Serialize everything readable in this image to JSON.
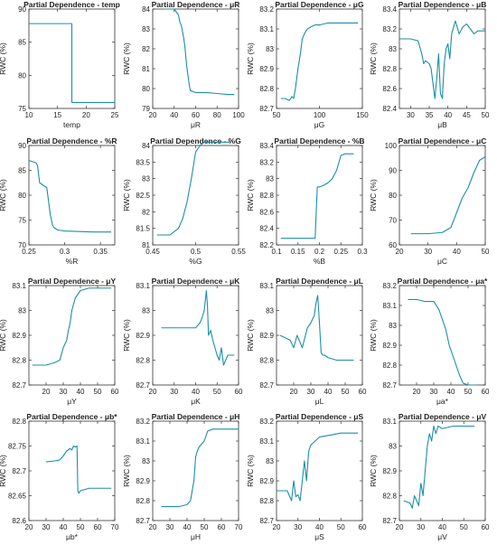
{
  "ylabel": "RWC (%)",
  "line_color": "#1b8fa6",
  "chart_data": [
    {
      "type": "line",
      "title": "Partial Dependence - temp",
      "xlabel": "temp",
      "xlim": [
        10,
        25
      ],
      "ylim": [
        75,
        90
      ],
      "xticks": [
        10,
        15,
        20,
        25
      ],
      "yticks": [
        75,
        80,
        85,
        90
      ],
      "ytick_labels": [
        "75",
        "80",
        "85",
        "90"
      ],
      "x": [
        10,
        17.5,
        17.5,
        25
      ],
      "y": [
        87.8,
        87.8,
        75.9,
        75.9
      ]
    },
    {
      "type": "line",
      "title": "Partial Dependence - μR",
      "xlabel": "μR",
      "xlim": [
        20,
        100
      ],
      "ylim": [
        79,
        84
      ],
      "xticks": [
        20,
        40,
        60,
        80,
        100
      ],
      "yticks": [
        79,
        80,
        81,
        82,
        83,
        84
      ],
      "ytick_labels": [
        "79",
        "80",
        "81",
        "82",
        "83",
        "84"
      ],
      "x": [
        30,
        40,
        44,
        45,
        47,
        48,
        49,
        50,
        51,
        52,
        53,
        54,
        55,
        60,
        70,
        80,
        90,
        96
      ],
      "y": [
        84.0,
        84.0,
        83.7,
        83.4,
        83.1,
        82.8,
        82.5,
        82.1,
        81.5,
        81.0,
        80.6,
        80.2,
        79.9,
        79.8,
        79.8,
        79.75,
        79.7,
        79.7
      ]
    },
    {
      "type": "line",
      "title": "Partial Dependence - μG",
      "xlabel": "μG",
      "xlim": [
        50,
        150
      ],
      "ylim": [
        82.7,
        83.2
      ],
      "xticks": [
        50,
        100,
        150
      ],
      "yticks": [
        82.7,
        82.8,
        82.9,
        83,
        83.1,
        83.2
      ],
      "ytick_labels": [
        "82.7",
        "82.8",
        "82.9",
        "83",
        "83.1",
        "83.2"
      ],
      "x": [
        55,
        60,
        65,
        68,
        70,
        72,
        75,
        78,
        80,
        83,
        86,
        90,
        95,
        100,
        110,
        120,
        130,
        140,
        145
      ],
      "y": [
        82.75,
        82.75,
        82.74,
        82.76,
        82.75,
        82.8,
        82.9,
        82.98,
        83.05,
        83.08,
        83.1,
        83.11,
        83.12,
        83.12,
        83.13,
        83.13,
        83.13,
        83.13,
        83.13
      ]
    },
    {
      "type": "line",
      "title": "Partial Dependence - μB",
      "xlabel": "μB",
      "xlim": [
        27,
        50
      ],
      "ylim": [
        82.4,
        83.4
      ],
      "xticks": [
        30,
        35,
        40,
        45,
        50
      ],
      "yticks": [
        82.4,
        82.6,
        82.8,
        83,
        83.2,
        83.4
      ],
      "ytick_labels": [
        "82.4",
        "82.6",
        "82.8",
        "83",
        "83.2",
        "83.4"
      ],
      "x": [
        27,
        30,
        32,
        33,
        33.5,
        34,
        35,
        35.5,
        36,
        36.5,
        37,
        37.5,
        38,
        38.5,
        39,
        39.5,
        40,
        40.5,
        41,
        42,
        43,
        44,
        45,
        46,
        47,
        48,
        50
      ],
      "y": [
        83.1,
        83.1,
        83.08,
        82.95,
        82.85,
        82.88,
        82.85,
        82.8,
        82.65,
        82.5,
        82.7,
        82.95,
        82.55,
        82.5,
        82.85,
        83.0,
        83.05,
        82.9,
        83.15,
        83.28,
        83.15,
        83.22,
        83.25,
        83.2,
        83.15,
        83.18,
        83.18
      ]
    },
    {
      "type": "line",
      "title": "Partial Dependence - %R",
      "xlabel": "%R",
      "xlim": [
        0.25,
        0.37
      ],
      "ylim": [
        70,
        90
      ],
      "xticks": [
        0.25,
        0.3,
        0.35
      ],
      "yticks": [
        70,
        75,
        80,
        85,
        90
      ],
      "ytick_labels": [
        "70",
        "75",
        "80",
        "85",
        "90"
      ],
      "x": [
        0.25,
        0.26,
        0.262,
        0.265,
        0.27,
        0.275,
        0.28,
        0.283,
        0.285,
        0.29,
        0.3,
        0.32,
        0.34,
        0.36,
        0.365
      ],
      "y": [
        87,
        86.5,
        86,
        82.5,
        82,
        81.5,
        76,
        74,
        73.5,
        73,
        72.8,
        72.7,
        72.6,
        72.6,
        72.6
      ]
    },
    {
      "type": "line",
      "title": "Partial Dependence - %G",
      "xlabel": "%G",
      "xlim": [
        0.45,
        0.55
      ],
      "ylim": [
        81,
        84
      ],
      "xticks": [
        0.45,
        0.5,
        0.55
      ],
      "yticks": [
        81,
        81.5,
        82,
        82.5,
        83,
        83.5,
        84
      ],
      "ytick_labels": [
        "81",
        "81.5",
        "82",
        "82.5",
        "83",
        "83.5",
        "84"
      ],
      "x": [
        0.455,
        0.47,
        0.475,
        0.48,
        0.485,
        0.49,
        0.495,
        0.5,
        0.505,
        0.51,
        0.52,
        0.54
      ],
      "y": [
        81.3,
        81.3,
        81.4,
        81.5,
        81.8,
        82.3,
        83.0,
        83.8,
        84.0,
        84.1,
        84.1,
        84.1
      ]
    },
    {
      "type": "line",
      "title": "Partial Dependence - %B",
      "xlabel": "%B",
      "xlim": [
        0.1,
        0.3
      ],
      "ylim": [
        82.2,
        83.4
      ],
      "xticks": [
        0.1,
        0.15,
        0.2,
        0.25,
        0.3
      ],
      "yticks": [
        82.2,
        82.4,
        82.6,
        82.8,
        83,
        83.2,
        83.4
      ],
      "ytick_labels": [
        "82.2",
        "82.4",
        "82.6",
        "82.8",
        "83",
        "83.2",
        "83.4"
      ],
      "x": [
        0.11,
        0.15,
        0.19,
        0.195,
        0.2,
        0.21,
        0.22,
        0.23,
        0.24,
        0.25,
        0.26,
        0.28
      ],
      "y": [
        82.28,
        82.28,
        82.28,
        82.9,
        82.9,
        82.92,
        82.95,
        83.0,
        83.1,
        83.28,
        83.3,
        83.3
      ]
    },
    {
      "type": "line",
      "title": "Partial Dependence - μC",
      "xlabel": "μC",
      "xlim": [
        20,
        50
      ],
      "ylim": [
        60,
        100
      ],
      "xticks": [
        20,
        30,
        40,
        50
      ],
      "yticks": [
        60,
        70,
        80,
        90,
        100
      ],
      "ytick_labels": [
        "60",
        "70",
        "80",
        "90",
        "100"
      ],
      "x": [
        24,
        30,
        35,
        38,
        40,
        42,
        44,
        46,
        48,
        50
      ],
      "y": [
        64.5,
        64.5,
        65,
        67,
        73,
        79,
        83,
        89,
        94,
        95.5
      ]
    },
    {
      "type": "line",
      "title": "Partial Dependence - μY",
      "xlabel": "μY",
      "xlim": [
        10,
        60
      ],
      "ylim": [
        82.7,
        83.1
      ],
      "xticks": [
        20,
        30,
        40,
        50,
        60
      ],
      "yticks": [
        82.7,
        82.8,
        82.9,
        83,
        83.1
      ],
      "ytick_labels": [
        "82.7",
        "82.8",
        "82.9",
        "83",
        "83.1"
      ],
      "x": [
        12,
        20,
        25,
        28,
        30,
        32,
        33,
        34,
        35,
        37,
        40,
        45,
        50,
        58
      ],
      "y": [
        82.78,
        82.78,
        82.79,
        82.8,
        82.85,
        82.88,
        82.92,
        82.95,
        83.0,
        83.05,
        83.08,
        83.09,
        83.09,
        83.09
      ]
    },
    {
      "type": "line",
      "title": "Partial Dependence - μK",
      "xlabel": "μK",
      "xlim": [
        20,
        60
      ],
      "ylim": [
        82.7,
        83.1
      ],
      "xticks": [
        20,
        30,
        40,
        50,
        60
      ],
      "yticks": [
        82.7,
        82.8,
        82.9,
        83,
        83.1
      ],
      "ytick_labels": [
        "82.7",
        "82.8",
        "82.9",
        "83",
        "83.1"
      ],
      "x": [
        24,
        35,
        40,
        42,
        43,
        44,
        45,
        45.5,
        46,
        47,
        48,
        49,
        50,
        51,
        52,
        53,
        55,
        58
      ],
      "y": [
        82.93,
        82.93,
        82.93,
        82.95,
        82.97,
        83.0,
        83.08,
        83.02,
        82.9,
        82.92,
        82.88,
        82.85,
        82.82,
        82.8,
        82.85,
        82.78,
        82.82,
        82.82
      ]
    },
    {
      "type": "line",
      "title": "Partial Dependence - μL",
      "xlabel": "μL",
      "xlim": [
        10,
        60
      ],
      "ylim": [
        82.7,
        83.1
      ],
      "xticks": [
        20,
        30,
        40,
        50,
        60
      ],
      "yticks": [
        82.7,
        82.8,
        82.9,
        83,
        83.1
      ],
      "ytick_labels": [
        "82.7",
        "82.8",
        "82.9",
        "83",
        "83.1"
      ],
      "x": [
        12,
        18,
        20,
        22,
        25,
        28,
        30,
        32,
        33,
        34,
        35,
        36,
        37,
        38,
        40,
        45,
        50,
        55
      ],
      "y": [
        82.9,
        82.88,
        82.85,
        82.9,
        82.85,
        82.93,
        82.95,
        82.98,
        83.03,
        83.06,
        82.95,
        82.83,
        82.82,
        82.82,
        82.81,
        82.8,
        82.8,
        82.8
      ]
    },
    {
      "type": "line",
      "title": "Partial Dependence - μa*",
      "xlabel": "μa*",
      "xlim": [
        10,
        60
      ],
      "ylim": [
        82.7,
        83.2
      ],
      "xticks": [
        20,
        30,
        40,
        50,
        60
      ],
      "yticks": [
        82.7,
        82.8,
        82.9,
        83,
        83.1,
        83.2
      ],
      "ytick_labels": [
        "82.7",
        "82.8",
        "82.9",
        "83",
        "83.1",
        "83.2"
      ],
      "x": [
        15,
        20,
        25,
        30,
        33,
        35,
        37,
        39,
        41,
        43,
        45,
        47,
        50,
        55
      ],
      "y": [
        83.13,
        83.13,
        83.12,
        83.12,
        83.08,
        83.03,
        82.98,
        82.9,
        82.85,
        82.8,
        82.75,
        82.71,
        82.7,
        82.7
      ]
    },
    {
      "type": "line",
      "title": "Partial Dependence - μb*",
      "xlabel": "μb*",
      "xlim": [
        20,
        70
      ],
      "ylim": [
        82.6,
        82.8
      ],
      "xticks": [
        20,
        30,
        40,
        50,
        60,
        70
      ],
      "yticks": [
        82.6,
        82.65,
        82.7,
        82.75,
        82.8
      ],
      "ytick_labels": [
        "82.6",
        "82.65",
        "82.7",
        "82.75",
        "82.8"
      ],
      "x": [
        30,
        35,
        38,
        40,
        42,
        44,
        45,
        46,
        47,
        48,
        48.5,
        49,
        50,
        55,
        60,
        68
      ],
      "y": [
        82.718,
        82.72,
        82.722,
        82.73,
        82.74,
        82.745,
        82.742,
        82.75,
        82.748,
        82.75,
        82.66,
        82.655,
        82.66,
        82.665,
        82.665,
        82.665
      ]
    },
    {
      "type": "line",
      "title": "Partial Dependence - μH",
      "xlabel": "μH",
      "xlim": [
        20,
        70
      ],
      "ylim": [
        82.7,
        83.2
      ],
      "xticks": [
        20,
        30,
        40,
        50,
        60,
        70
      ],
      "yticks": [
        82.7,
        82.8,
        82.9,
        83,
        83.1,
        83.2
      ],
      "ytick_labels": [
        "82.7",
        "82.8",
        "82.9",
        "83",
        "83.1",
        "83.2"
      ],
      "x": [
        25,
        35,
        40,
        42,
        43,
        44,
        45,
        46,
        47,
        48,
        50,
        52,
        55,
        60,
        70
      ],
      "y": [
        82.77,
        82.77,
        82.78,
        82.8,
        82.85,
        82.9,
        83.02,
        83.05,
        83.07,
        83.08,
        83.1,
        83.15,
        83.16,
        83.16,
        83.16
      ]
    },
    {
      "type": "line",
      "title": "Partial Dependence - μS",
      "xlabel": "μS",
      "xlim": [
        20,
        60
      ],
      "ylim": [
        82.7,
        83.2
      ],
      "xticks": [
        20,
        30,
        40,
        50,
        60
      ],
      "yticks": [
        82.7,
        82.8,
        82.9,
        83,
        83.1,
        83.2
      ],
      "ytick_labels": [
        "82.7",
        "82.8",
        "82.9",
        "83",
        "83.1",
        "83.2"
      ],
      "x": [
        20,
        25,
        27,
        28,
        29,
        30,
        31,
        32,
        33,
        34,
        35,
        36,
        38,
        40,
        45,
        50,
        58
      ],
      "y": [
        82.85,
        82.85,
        82.8,
        82.9,
        82.82,
        82.83,
        82.8,
        82.9,
        83.0,
        82.9,
        83.05,
        83.08,
        83.1,
        83.12,
        83.13,
        83.14,
        83.14
      ]
    },
    {
      "type": "line",
      "title": "Partial Dependence - μV",
      "xlabel": "μV",
      "xlim": [
        20,
        60
      ],
      "ylim": [
        82.7,
        83.1
      ],
      "xticks": [
        20,
        30,
        40,
        50,
        60
      ],
      "yticks": [
        82.7,
        82.8,
        82.9,
        83,
        83.1
      ],
      "ytick_labels": [
        "82.7",
        "82.8",
        "82.9",
        "83",
        "83.1"
      ],
      "x": [
        22,
        25,
        26,
        27,
        28,
        29,
        30,
        31,
        32,
        33,
        34,
        35,
        36,
        37,
        38,
        40,
        45,
        50,
        55
      ],
      "y": [
        82.78,
        82.77,
        82.75,
        82.8,
        82.78,
        82.76,
        82.85,
        82.8,
        82.9,
        83.0,
        83.05,
        83.02,
        83.08,
        83.05,
        83.08,
        83.07,
        83.08,
        83.08,
        83.08
      ]
    }
  ]
}
